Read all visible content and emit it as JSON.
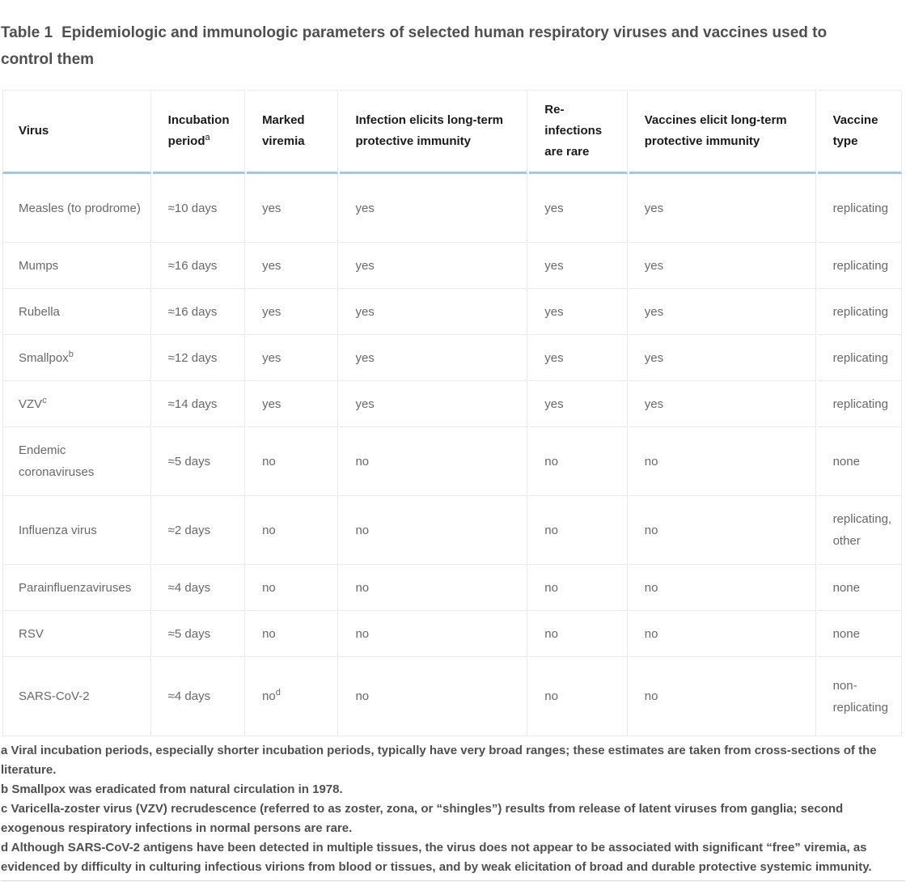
{
  "page": {
    "table_label": "Table 1",
    "table_title": "Epidemiologic and immunologic parameters of selected human respiratory viruses and vaccines used to control them"
  },
  "table": {
    "columns": [
      {
        "label": "Virus",
        "sup": ""
      },
      {
        "label": "Incubation period",
        "sup": "a"
      },
      {
        "label": "Marked viremia",
        "sup": ""
      },
      {
        "label": "Infection elicits long-term protective immunity",
        "sup": ""
      },
      {
        "label": "Re-infections are rare",
        "sup": ""
      },
      {
        "label": "Vaccines elicit long-term protective immunity",
        "sup": ""
      },
      {
        "label": "Vaccine type",
        "sup": ""
      }
    ],
    "rows": [
      {
        "virus": "Measles (to prodrome)",
        "virus_sup": "",
        "incubation_period": "≈10 days",
        "marked_viremia": "yes",
        "viremia_sup": "",
        "infection_immunity": "yes",
        "reinfections_rare": "yes",
        "vaccine_immunity": "yes",
        "vaccine_type": "replicating",
        "size": "tall"
      },
      {
        "virus": "Mumps",
        "virus_sup": "",
        "incubation_period": "≈16 days",
        "marked_viremia": "yes",
        "viremia_sup": "",
        "infection_immunity": "yes",
        "reinfections_rare": "yes",
        "vaccine_immunity": "yes",
        "vaccine_type": "replicating",
        "size": "normal"
      },
      {
        "virus": "Rubella",
        "virus_sup": "",
        "incubation_period": "≈16 days",
        "marked_viremia": "yes",
        "viremia_sup": "",
        "infection_immunity": "yes",
        "reinfections_rare": "yes",
        "vaccine_immunity": "yes",
        "vaccine_type": "replicating",
        "size": "normal"
      },
      {
        "virus": "Smallpox",
        "virus_sup": "b",
        "incubation_period": "≈12 days",
        "marked_viremia": "yes",
        "viremia_sup": "",
        "infection_immunity": "yes",
        "reinfections_rare": "yes",
        "vaccine_immunity": "yes",
        "vaccine_type": "replicating",
        "size": "normal"
      },
      {
        "virus": "VZV",
        "virus_sup": "c",
        "incubation_period": "≈14 days",
        "marked_viremia": "yes",
        "viremia_sup": "",
        "infection_immunity": "yes",
        "reinfections_rare": "yes",
        "vaccine_immunity": "yes",
        "vaccine_type": "replicating",
        "size": "normal"
      },
      {
        "virus": "Endemic coronaviruses",
        "virus_sup": "",
        "incubation_period": "≈5 days",
        "marked_viremia": "no",
        "viremia_sup": "",
        "infection_immunity": "no",
        "reinfections_rare": "no",
        "vaccine_immunity": "no",
        "vaccine_type": "none",
        "size": "tall"
      },
      {
        "virus": "Influenza virus",
        "virus_sup": "",
        "incubation_period": "≈2 days",
        "marked_viremia": "no",
        "viremia_sup": "",
        "infection_immunity": "no",
        "reinfections_rare": "no",
        "vaccine_immunity": "no",
        "vaccine_type": "replicating, other",
        "size": "tall"
      },
      {
        "virus": "Parainfluenzaviruses",
        "virus_sup": "",
        "incubation_period": "≈4 days",
        "marked_viremia": "no",
        "viremia_sup": "",
        "infection_immunity": "no",
        "reinfections_rare": "no",
        "vaccine_immunity": "no",
        "vaccine_type": "none",
        "size": "normal"
      },
      {
        "virus": "RSV",
        "virus_sup": "",
        "incubation_period": "≈5 days",
        "marked_viremia": "no",
        "viremia_sup": "",
        "infection_immunity": "no",
        "reinfections_rare": "no",
        "vaccine_immunity": "no",
        "vaccine_type": "none",
        "size": "normal"
      },
      {
        "virus": "SARS-CoV-2",
        "virus_sup": "",
        "incubation_period": "≈4 days",
        "marked_viremia": "no",
        "viremia_sup": "d",
        "infection_immunity": "no",
        "reinfections_rare": "no",
        "vaccine_immunity": "no",
        "vaccine_type": "non-replicating",
        "size": "xtall"
      }
    ]
  },
  "footnotes": [
    "a Viral incubation periods, especially shorter incubation periods, typically have very broad ranges; these estimates are taken from cross-sections of the literature.",
    "b Smallpox was eradicated from natural circulation in 1978.",
    "c Varicella-zoster virus (VZV) recrudescence (referred to as zoster, zona, or “shingles”) results from release of latent viruses from ganglia; second exogenous respiratory infections in normal persons are rare.",
    "d Although SARS-CoV-2 antigens have been detected in multiple tissues, the virus does not appear to be associated with significant “free” viremia, as evidenced by difficulty in culturing infectious virions from blood or tissues, and by weak elicitation of broad and durable protective systemic immunity."
  ],
  "colors": {
    "header_underline": "#a8c7dd",
    "grid_line": "#e9e9e9",
    "body_text": "#686868",
    "header_text": "#1a1a1a",
    "caption_text": "#4f4f4f"
  }
}
